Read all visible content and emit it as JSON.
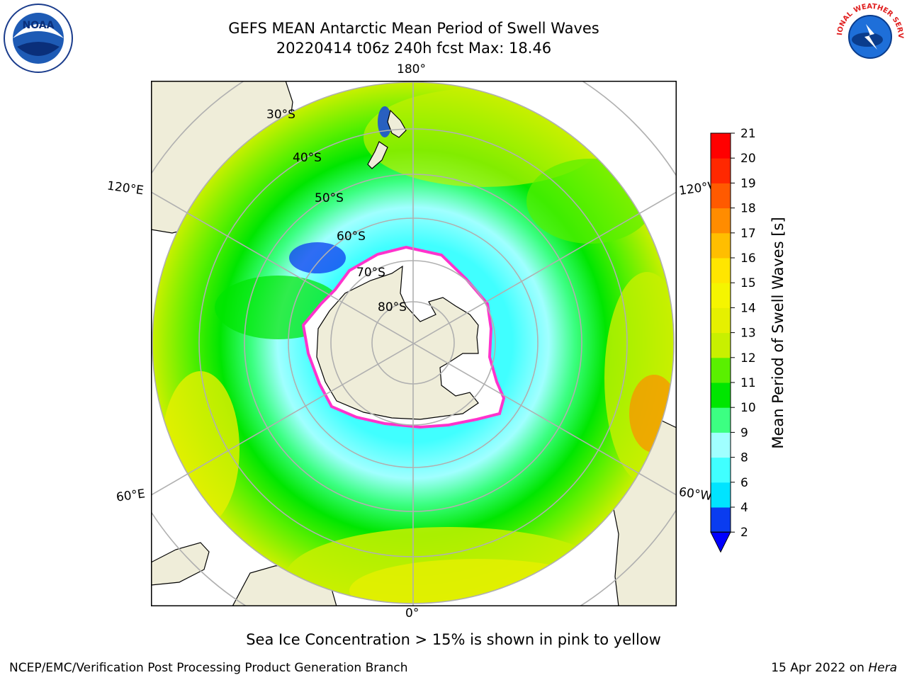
{
  "header": {
    "title_line1": "GEFS MEAN Antarctic Mean Period of Swell Waves",
    "title_line2": "20220414 t06z 240h fcst   Max: 18.46"
  },
  "logos": {
    "left": {
      "name": "noaa-logo",
      "text": "NOAA"
    },
    "right": {
      "name": "national-weather-service-logo",
      "text": "NATIONAL WEATHER SERVICE"
    }
  },
  "map": {
    "projection": "south-polar-stereographic",
    "longitude_labels": {
      "top": "180°",
      "bottom": "0°",
      "upper_left": "120°E",
      "upper_right": "120°W",
      "lower_left": "60°E",
      "lower_right": "60°W"
    },
    "latitude_labels": [
      "30°S",
      "40°S",
      "50°S",
      "60°S",
      "70°S",
      "80°S"
    ],
    "colors": {
      "land": "#efedd9",
      "coast": "#000000",
      "graticule": "#b0b0b0",
      "ice_edge": "#ff33cc"
    }
  },
  "colorbar": {
    "label": "Mean Period of Swell Waves [s]",
    "ticks": [
      "2",
      "4",
      "6",
      "8",
      "9",
      "10",
      "11",
      "12",
      "13",
      "14",
      "15",
      "16",
      "17",
      "18",
      "19",
      "20",
      "21"
    ],
    "colors": [
      "#0a3cf0",
      "#00e4ff",
      "#40ffff",
      "#a0ffff",
      "#3cff82",
      "#00e600",
      "#5af000",
      "#c8f000",
      "#e6f000",
      "#f5f500",
      "#ffe600",
      "#ffbe00",
      "#ff8c00",
      "#ff5a00",
      "#ff2800",
      "#ff0000"
    ],
    "extend_color": "#0000ff"
  },
  "note": "Sea Ice Concentration > 15% is shown in pink to yellow",
  "footer": {
    "left": "NCEP/EMC/Verification Post Processing Product Generation Branch",
    "right_date": "15 Apr 2022 on ",
    "right_host": "Hera"
  }
}
